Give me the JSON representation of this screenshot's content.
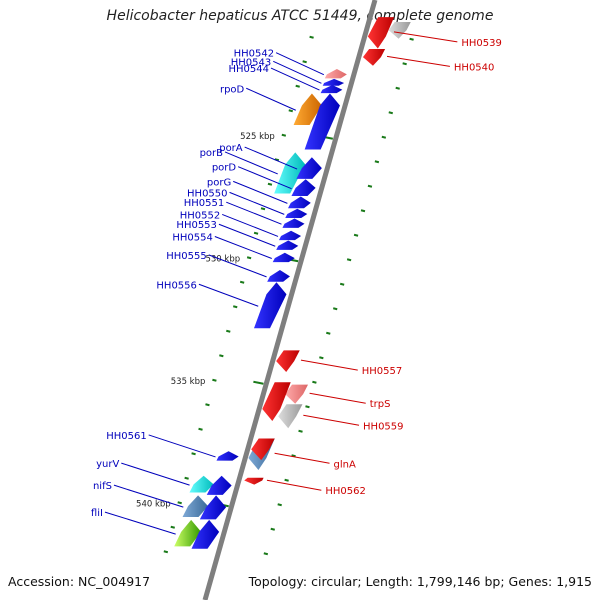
{
  "title": "Helicobacter hepaticus ATCC 51449, complete genome",
  "footer": {
    "accession": "Accession: NC_004917",
    "summary": "Topology: circular; Length: 1,799,146 bp; Genes: 1,915"
  },
  "colors": {
    "backbone": "#7f7f7f",
    "tick": "#1a7a1a",
    "forward": "#0000ee",
    "reverse": "#ee0000",
    "label_forward": "#0000bb",
    "label_reverse": "#cc0000",
    "rna": "#ee8800",
    "protein_transport": "#00e0e0",
    "metabolism": "#4f83b5",
    "other": "#bbbbbb",
    "flagellar": "#99ee33"
  },
  "scale": [
    {
      "label": "525 kbp",
      "kbp": 525
    },
    {
      "label": "530 kbp",
      "kbp": 530
    },
    {
      "label": "535 kbp",
      "kbp": 535
    },
    {
      "label": "540 kbp",
      "kbp": 540
    }
  ],
  "genes": [
    {
      "name": "HH0539",
      "strand": "-",
      "start_kbp": 520.2,
      "end_kbp": 521.4,
      "category": "reverse",
      "label": "HH0539"
    },
    {
      "name": "HH0539b",
      "strand": "-",
      "start_kbp": 520.4,
      "end_kbp": 521.0,
      "category": "other",
      "label": ""
    },
    {
      "name": "HH0540",
      "strand": "-",
      "start_kbp": 521.5,
      "end_kbp": 522.1,
      "category": "reverse",
      "label": "HH0540"
    },
    {
      "name": "HH0542",
      "strand": "+",
      "start_kbp": 522.4,
      "end_kbp": 522.7,
      "category": "pink",
      "label": "HH0542"
    },
    {
      "name": "HH0543",
      "strand": "+",
      "start_kbp": 522.8,
      "end_kbp": 523.0,
      "category": "forward",
      "label": "HH0543"
    },
    {
      "name": "HH0544",
      "strand": "+",
      "start_kbp": 523.05,
      "end_kbp": 523.3,
      "category": "forward",
      "label": "HH0544"
    },
    {
      "name": "rpoD",
      "strand": "+",
      "start_kbp": 523.4,
      "end_kbp": 524.6,
      "category": "rna",
      "label": "rpoD"
    },
    {
      "name": "rpoDb",
      "strand": "+",
      "start_kbp": 523.4,
      "end_kbp": 525.6,
      "category": "forward",
      "label": ""
    },
    {
      "name": "porB",
      "strand": "+",
      "start_kbp": 525.8,
      "end_kbp": 527.4,
      "category": "protein_transport",
      "label": "porB"
    },
    {
      "name": "porA",
      "strand": "+",
      "start_kbp": 526.0,
      "end_kbp": 526.8,
      "category": "forward",
      "label": "porA"
    },
    {
      "name": "porD",
      "strand": "+",
      "start_kbp": 526.9,
      "end_kbp": 527.5,
      "category": "forward",
      "label": "porD"
    },
    {
      "name": "porG",
      "strand": "+",
      "start_kbp": 527.6,
      "end_kbp": 528.0,
      "category": "forward",
      "label": "porG"
    },
    {
      "name": "HH0550",
      "strand": "+",
      "start_kbp": 528.1,
      "end_kbp": 528.4,
      "category": "forward",
      "label": "HH0550"
    },
    {
      "name": "HH0551",
      "strand": "+",
      "start_kbp": 528.5,
      "end_kbp": 528.8,
      "category": "forward",
      "label": "HH0551"
    },
    {
      "name": "HH0552",
      "strand": "+",
      "start_kbp": 529.0,
      "end_kbp": 529.3,
      "category": "forward",
      "label": "HH0552"
    },
    {
      "name": "HH0553",
      "strand": "+",
      "start_kbp": 529.4,
      "end_kbp": 529.7,
      "category": "forward",
      "label": "HH0553"
    },
    {
      "name": "HH0554",
      "strand": "+",
      "start_kbp": 529.9,
      "end_kbp": 530.2,
      "category": "forward",
      "label": "HH0554"
    },
    {
      "name": "HH0555",
      "strand": "+",
      "start_kbp": 530.6,
      "end_kbp": 531.0,
      "category": "forward",
      "label": "HH0555"
    },
    {
      "name": "HH0556",
      "strand": "+",
      "start_kbp": 531.1,
      "end_kbp": 532.9,
      "category": "forward",
      "label": "HH0556"
    },
    {
      "name": "HH0557",
      "strand": "-",
      "start_kbp": 533.8,
      "end_kbp": 534.6,
      "category": "reverse",
      "label": "HH0557"
    },
    {
      "name": "trpS",
      "strand": "-",
      "start_kbp": 535.2,
      "end_kbp": 535.9,
      "category": "pink",
      "label": "trpS"
    },
    {
      "name": "HH0559",
      "strand": "-",
      "start_kbp": 536.0,
      "end_kbp": 536.9,
      "category": "other",
      "label": "HH0559"
    },
    {
      "name": "HH0559r",
      "strand": "-",
      "start_kbp": 535.1,
      "end_kbp": 536.6,
      "category": "reverse",
      "label": ""
    },
    {
      "name": "glnA",
      "strand": "-",
      "start_kbp": 537.4,
      "end_kbp": 538.6,
      "category": "metabolism",
      "label": "glnA"
    },
    {
      "name": "glnAr",
      "strand": "-",
      "start_kbp": 537.4,
      "end_kbp": 538.2,
      "category": "reverse",
      "label": ""
    },
    {
      "name": "HH0562",
      "strand": "-",
      "start_kbp": 539.0,
      "end_kbp": 539.2,
      "category": "reverse",
      "label": "HH0562"
    },
    {
      "name": "HH0561",
      "strand": "+",
      "start_kbp": 538.0,
      "end_kbp": 538.3,
      "category": "other",
      "label": "HH0561"
    },
    {
      "name": "HH0561b",
      "strand": "+",
      "start_kbp": 538.0,
      "end_kbp": 538.3,
      "category": "forward",
      "label": ""
    },
    {
      "name": "yurV",
      "strand": "+",
      "start_kbp": 539.0,
      "end_kbp": 539.6,
      "category": "protein_transport",
      "label": "yurV"
    },
    {
      "name": "yurVb",
      "strand": "+",
      "start_kbp": 539.0,
      "end_kbp": 539.7,
      "category": "forward",
      "label": ""
    },
    {
      "name": "nifS",
      "strand": "+",
      "start_kbp": 539.8,
      "end_kbp": 540.6,
      "category": "metabolism",
      "label": "nifS"
    },
    {
      "name": "nifSb",
      "strand": "+",
      "start_kbp": 539.8,
      "end_kbp": 540.7,
      "category": "forward",
      "label": ""
    },
    {
      "name": "fliI",
      "strand": "+",
      "start_kbp": 540.8,
      "end_kbp": 541.8,
      "category": "flagellar",
      "label": "fliI"
    },
    {
      "name": "fliIb",
      "strand": "+",
      "start_kbp": 540.8,
      "end_kbp": 541.9,
      "category": "forward",
      "label": ""
    }
  ]
}
